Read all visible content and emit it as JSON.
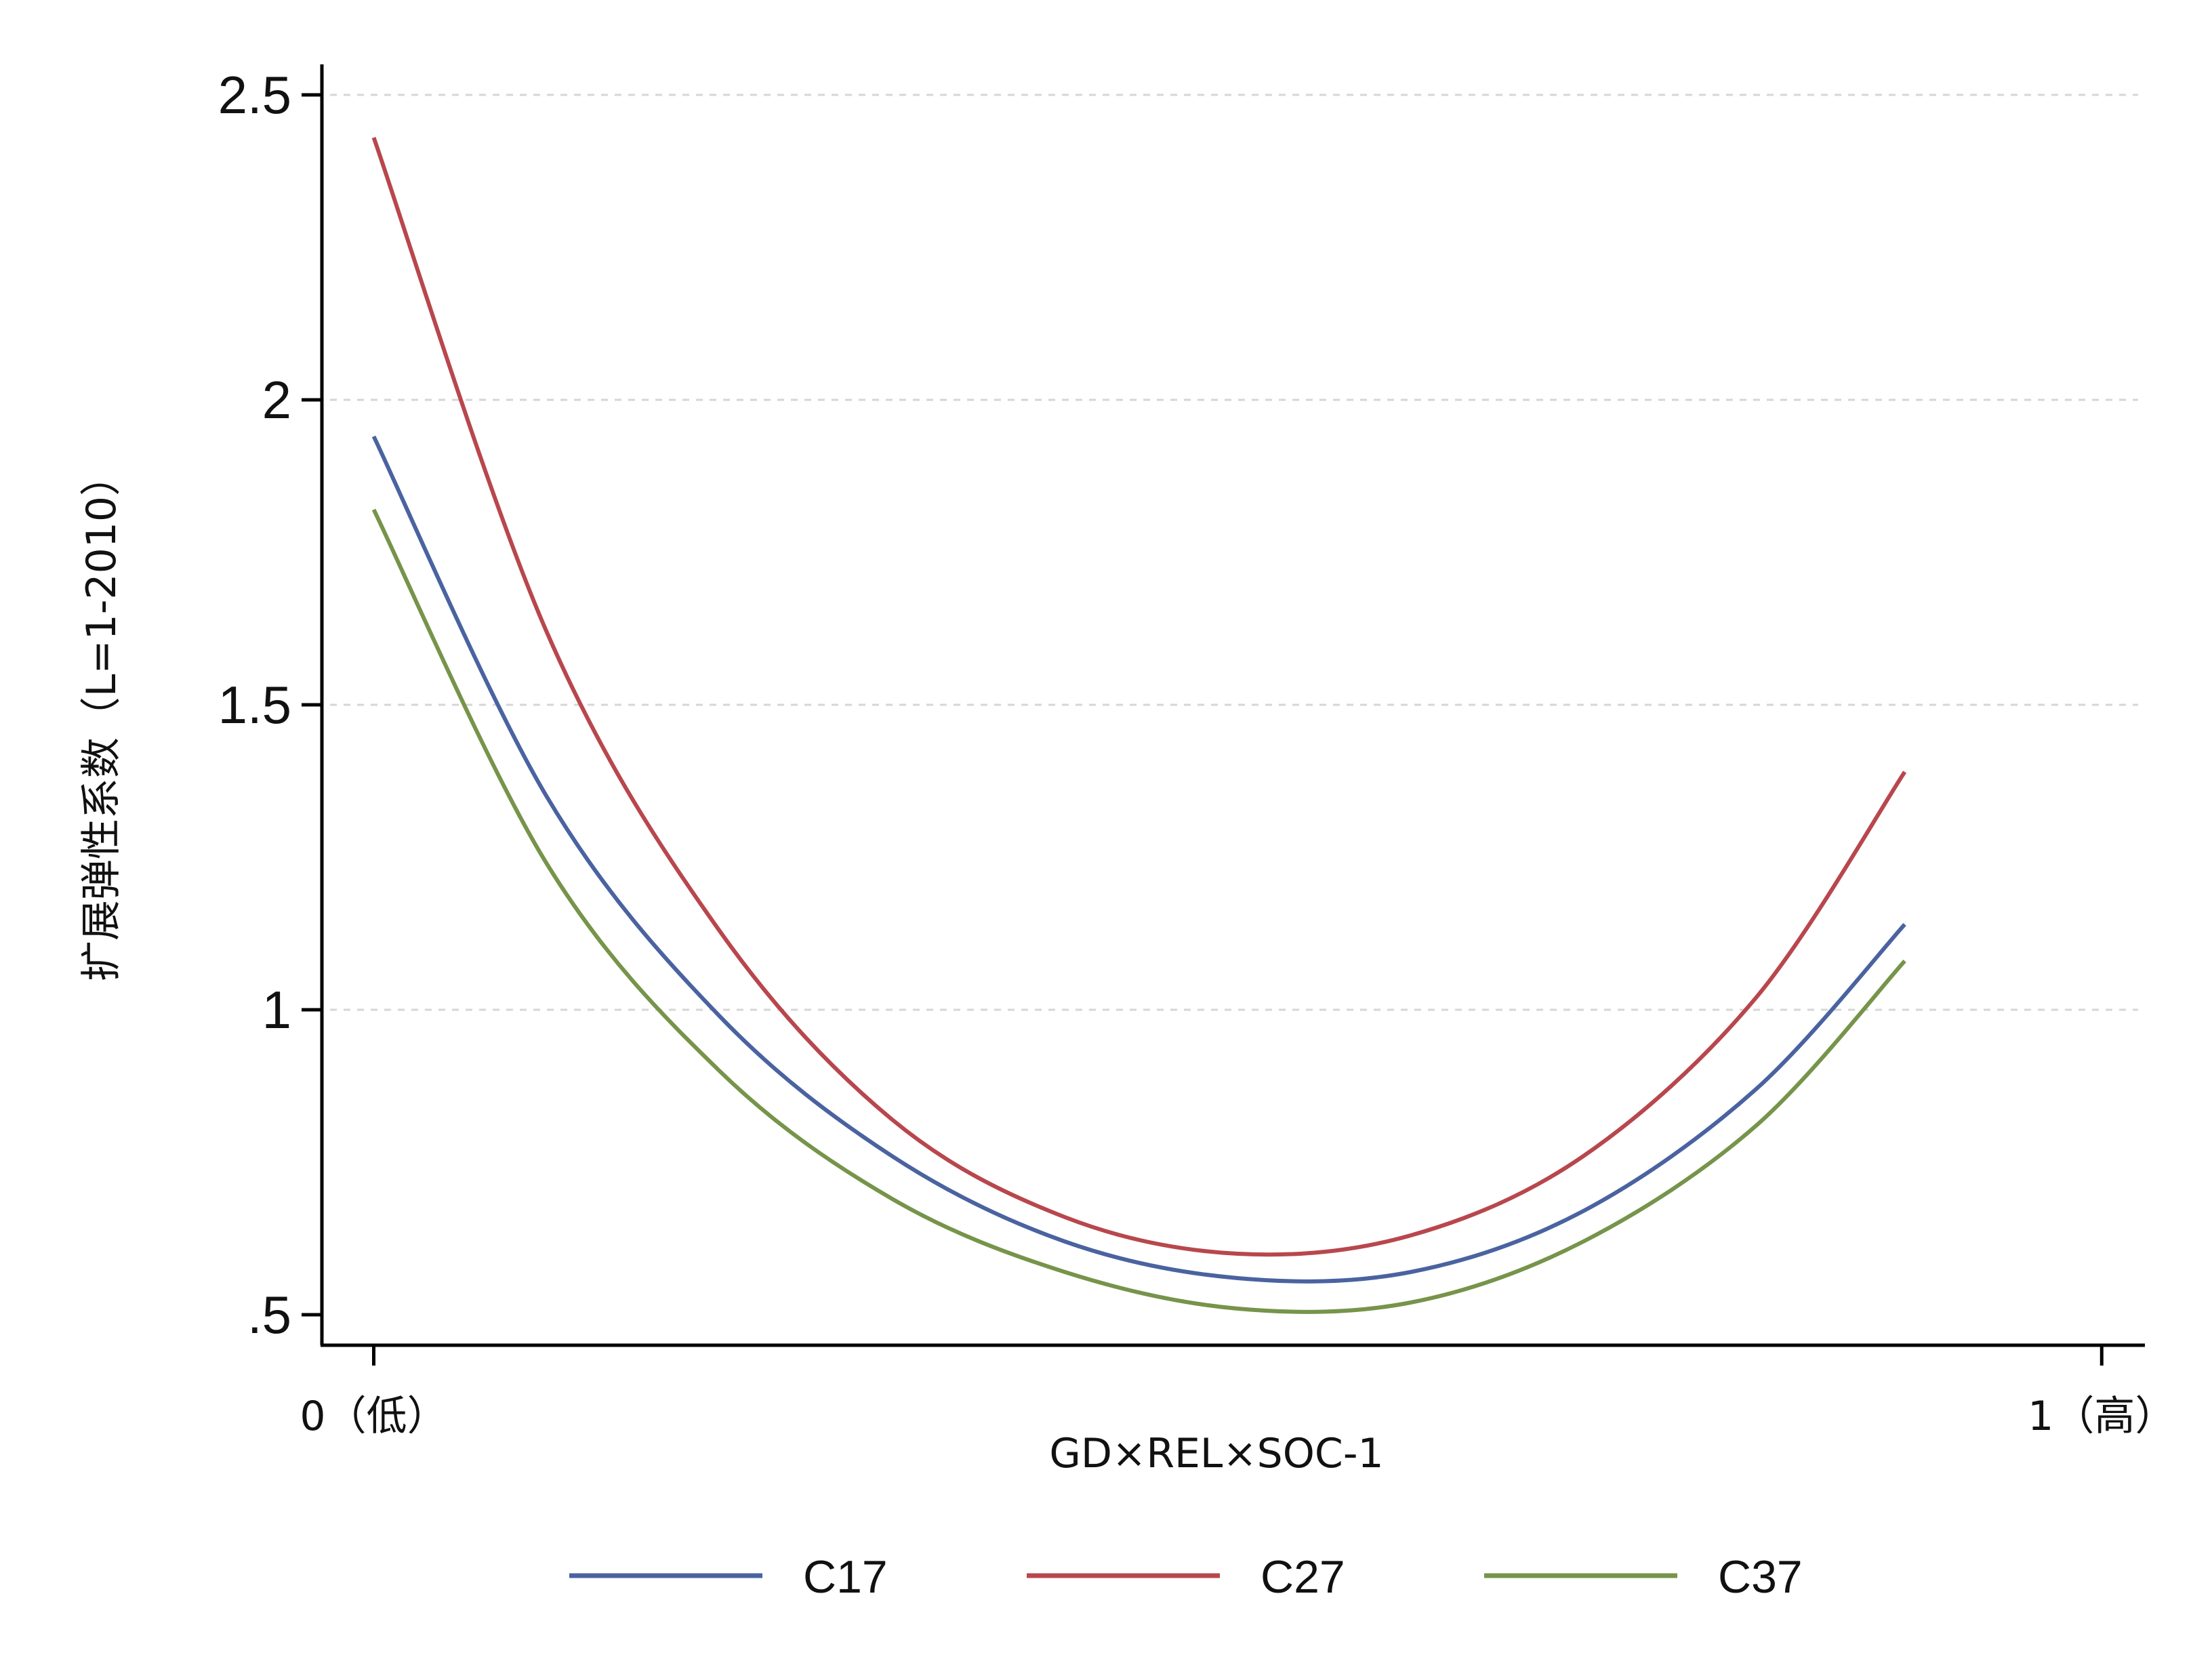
{
  "chart_data": {
    "type": "line",
    "title": "",
    "xlabel": "GD×REL×SOC-1",
    "ylabel": "扩展弹性系数（L=1-2010）",
    "xlim": [
      -0.03,
      1.025
    ],
    "ylim": [
      0.45,
      2.55
    ],
    "grid": "horizontal-dashed",
    "legend_position": "bottom",
    "x_ticks": [
      {
        "value": 0,
        "label": "0（低）"
      },
      {
        "value": 1,
        "label": "1（高）"
      }
    ],
    "y_ticks": [
      {
        "value": 0.5,
        "label": ".5"
      },
      {
        "value": 1,
        "label": "1"
      },
      {
        "value": 1.5,
        "label": "1.5"
      },
      {
        "value": 2,
        "label": "2"
      },
      {
        "value": 2.5,
        "label": "2.5"
      }
    ],
    "series": [
      {
        "name": "C17",
        "color": "#4a63a0",
        "x": [
          0.0,
          0.1,
          0.2,
          0.3,
          0.4,
          0.5,
          0.6,
          0.7,
          0.8,
          0.886
        ],
        "y": [
          1.94,
          1.35,
          0.99,
          0.76,
          0.62,
          0.56,
          0.57,
          0.67,
          0.87,
          1.14
        ]
      },
      {
        "name": "C27",
        "color": "#b8474d",
        "x": [
          0.0,
          0.1,
          0.2,
          0.3,
          0.4,
          0.5,
          0.6,
          0.7,
          0.8,
          0.886
        ],
        "y": [
          2.43,
          1.62,
          1.13,
          0.82,
          0.66,
          0.6,
          0.63,
          0.76,
          1.02,
          1.39
        ]
      },
      {
        "name": "C37",
        "color": "#76944a",
        "x": [
          0.0,
          0.1,
          0.2,
          0.3,
          0.4,
          0.5,
          0.6,
          0.7,
          0.8,
          0.886
        ],
        "y": [
          1.82,
          1.24,
          0.9,
          0.69,
          0.57,
          0.51,
          0.52,
          0.62,
          0.81,
          1.08
        ]
      }
    ]
  }
}
